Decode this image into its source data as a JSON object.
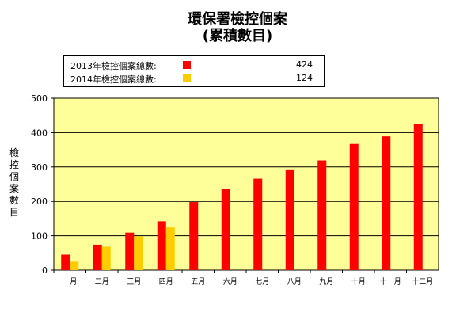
{
  "chart_data": {
    "type": "bar",
    "title": "環保署檢控個案",
    "subtitle": "(累積數目)",
    "ylabel": "檢控個案數目",
    "xlabel": "",
    "ylim": [
      0,
      500
    ],
    "yticks": [
      0,
      100,
      200,
      300,
      400,
      500
    ],
    "grid": true,
    "plot_background": "#ffff99",
    "legend_position": "top-left",
    "categories": [
      "一月",
      "二月",
      "三月",
      "四月",
      "五月",
      "六月",
      "七月",
      "八月",
      "九月",
      "十月",
      "十一月",
      "十二月"
    ],
    "series": [
      {
        "name": "2013年檢控個案總數:",
        "color": "#ff0000",
        "total": 424,
        "values": [
          45,
          74,
          109,
          142,
          198,
          235,
          266,
          293,
          319,
          367,
          389,
          424
        ]
      },
      {
        "name": "2014年檢控個案總數:",
        "color": "#ffcc00",
        "total": 124,
        "values": [
          27,
          68,
          98,
          124,
          null,
          null,
          null,
          null,
          null,
          null,
          null,
          null
        ]
      }
    ]
  }
}
